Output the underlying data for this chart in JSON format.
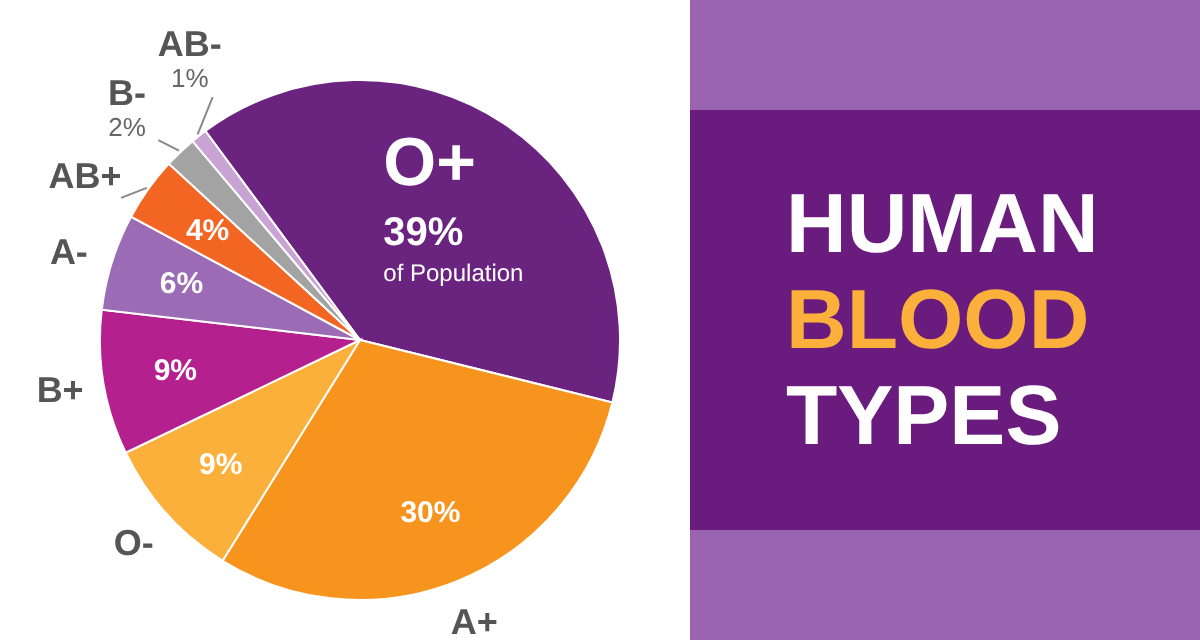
{
  "chart_data": {
    "type": "pie",
    "title": "HUMAN BLOOD TYPES",
    "categories": [
      "O+",
      "A+",
      "O-",
      "B+",
      "A-",
      "AB+",
      "B-",
      "AB-"
    ],
    "values": [
      39,
      30,
      9,
      9,
      6,
      4,
      2,
      1
    ],
    "value_labels": [
      "39%",
      "30%",
      "9%",
      "9%",
      "6%",
      "4%",
      "2%",
      "1%"
    ],
    "colors": [
      "#6b2380",
      "#f7941d",
      "#fbb03b",
      "#b5208f",
      "#9b6cb5",
      "#f26522",
      "#a3a3a3",
      "#c9a3d3"
    ],
    "annotations": [
      "of Population"
    ]
  }
}
